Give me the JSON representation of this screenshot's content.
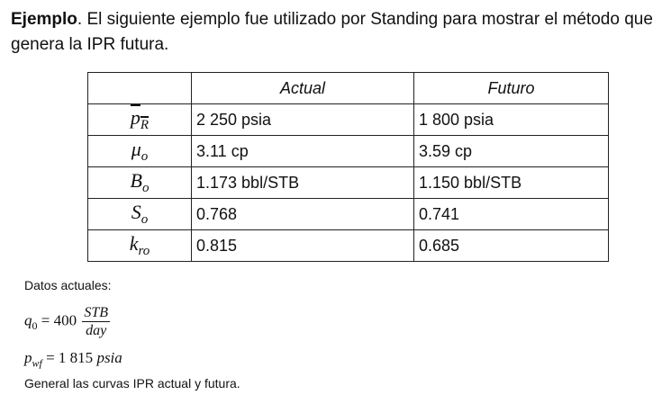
{
  "intro": {
    "bold": "Ejemplo",
    "text": ". El siguiente ejemplo fue utilizado por Standing para mostrar el método que genera la IPR futura."
  },
  "table": {
    "headers": [
      "Actual",
      "Futuro"
    ],
    "rows": [
      {
        "symbol": "p",
        "sub": "R",
        "actual": "2 250 psia",
        "futuro": "1 800 psia"
      },
      {
        "symbol": "μ",
        "sub": "o",
        "actual": "3.11 cp",
        "futuro": "3.59 cp"
      },
      {
        "symbol": "B",
        "sub": "o",
        "actual": "1.173 bbl/STB",
        "futuro": "1.150 bbl/STB"
      },
      {
        "symbol": "S",
        "sub": "o",
        "actual": "0.768",
        "futuro": "0.741"
      },
      {
        "symbol": "k",
        "sub": "ro",
        "actual": "0.815",
        "futuro": "0.685"
      }
    ]
  },
  "datos": {
    "label": "Datos actuales:",
    "q0": {
      "var": "q",
      "sub": "0",
      "eq": " = 400",
      "num": "STB",
      "den": "day"
    },
    "pwf": {
      "var": "p",
      "sub": "wf",
      "eq": " = 1 815 ",
      "unit": "psia"
    },
    "instruction": "General las curvas IPR actual y futura."
  }
}
